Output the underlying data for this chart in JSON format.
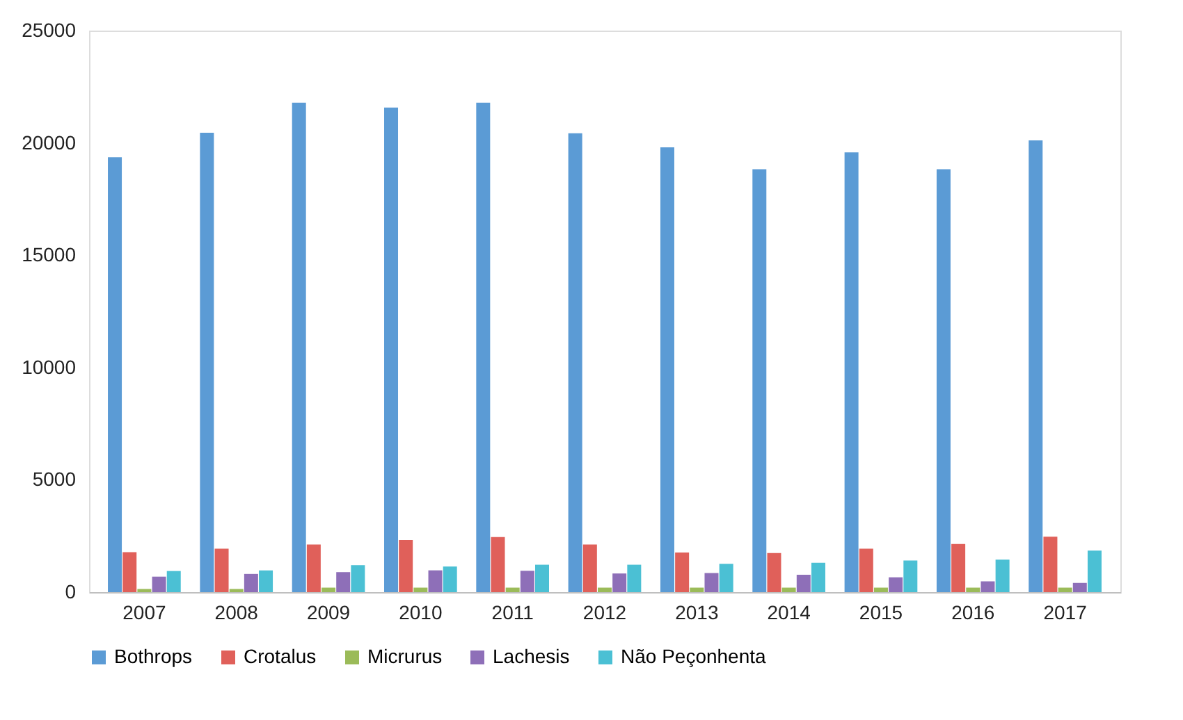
{
  "chart_data": {
    "type": "bar",
    "categories": [
      "2007",
      "2008",
      "2009",
      "2010",
      "2011",
      "2012",
      "2013",
      "2014",
      "2015",
      "2016",
      "2017"
    ],
    "series": [
      {
        "name": "Bothrops",
        "color": "#5b9bd5",
        "values": [
          19360,
          20450,
          21790,
          21570,
          21790,
          20430,
          19800,
          18830,
          19580,
          18830,
          20110
        ]
      },
      {
        "name": "Crotalus",
        "color": "#e0605a",
        "values": [
          1780,
          1930,
          2120,
          2320,
          2450,
          2120,
          1760,
          1740,
          1930,
          2140,
          2470
        ]
      },
      {
        "name": "Micrurus",
        "color": "#9bbb59",
        "values": [
          140,
          140,
          200,
          200,
          200,
          200,
          200,
          200,
          200,
          200,
          200
        ]
      },
      {
        "name": "Lachesis",
        "color": "#8e6fb8",
        "values": [
          690,
          810,
          890,
          970,
          950,
          830,
          850,
          770,
          660,
          480,
          410
        ]
      },
      {
        "name": "Não Peçonhenta",
        "color": "#4bc0d4",
        "values": [
          940,
          970,
          1200,
          1140,
          1220,
          1220,
          1260,
          1310,
          1410,
          1450,
          1850
        ]
      }
    ],
    "ylim": [
      0,
      25000
    ],
    "yticks": [
      0,
      5000,
      10000,
      15000,
      20000,
      25000
    ],
    "grid": false,
    "legend": "bottom"
  }
}
